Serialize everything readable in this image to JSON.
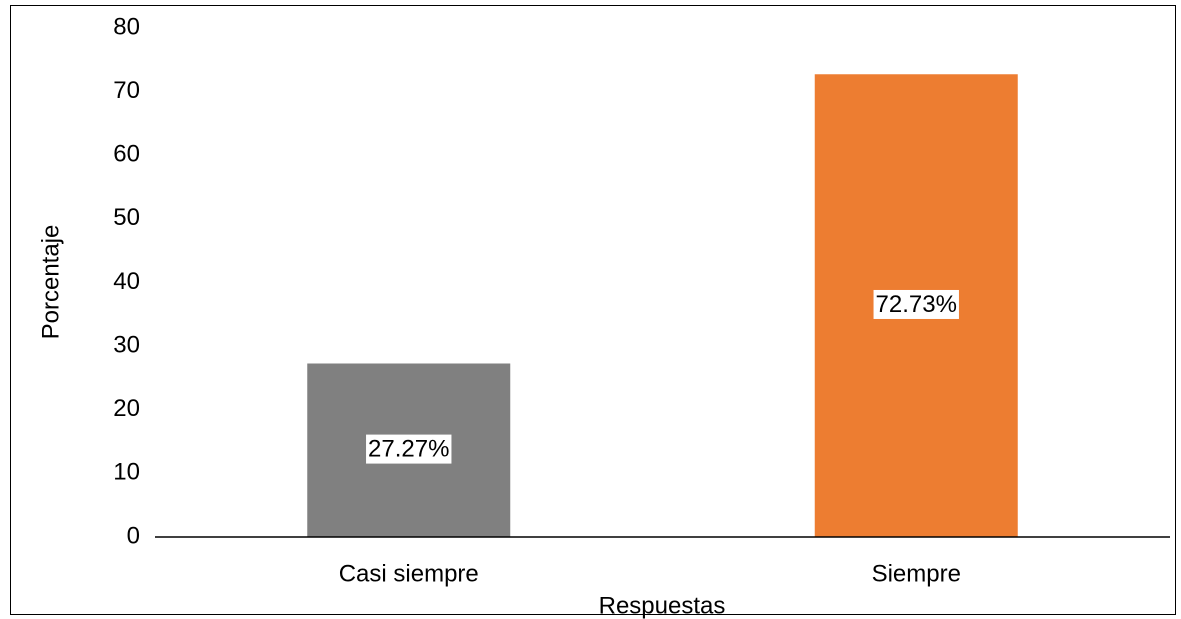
{
  "chart_data": {
    "type": "bar",
    "categories": [
      "Casi siempre",
      "Siempre"
    ],
    "values": [
      27.27,
      72.73
    ],
    "value_labels": [
      "27.27%",
      "72.73%"
    ],
    "colors": [
      "#808080",
      "#ed7d31"
    ],
    "ylim": [
      0,
      80
    ],
    "yticks": [
      0,
      10,
      20,
      30,
      40,
      50,
      60,
      70,
      80
    ],
    "xlabel": "Respuestas",
    "ylabel": "Porcentaje",
    "grid": false
  }
}
